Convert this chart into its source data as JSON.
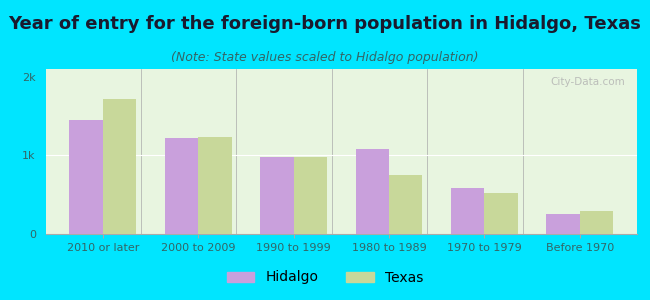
{
  "title": "Year of entry for the foreign-born population in Hidalgo, Texas",
  "subtitle": "(Note: State values scaled to Hidalgo population)",
  "categories": [
    "2010 or later",
    "2000 to 2009",
    "1990 to 1999",
    "1980 to 1989",
    "1970 to 1979",
    "Before 1970"
  ],
  "hidalgo_values": [
    1450,
    1220,
    980,
    1080,
    580,
    250
  ],
  "texas_values": [
    1720,
    1240,
    980,
    750,
    520,
    290
  ],
  "hidalgo_color": "#c9a0dc",
  "texas_color": "#c8d89a",
  "background_outer": "#00e5ff",
  "background_inner": "#e8f5e0",
  "bar_width": 0.35,
  "ylim": [
    0,
    2100
  ],
  "yticks": [
    0,
    1000,
    2000
  ],
  "ytick_labels": [
    "0",
    "1k",
    "2k"
  ],
  "legend_labels": [
    "Hidalgo",
    "Texas"
  ],
  "title_fontsize": 13,
  "subtitle_fontsize": 9,
  "tick_fontsize": 8,
  "legend_fontsize": 10,
  "watermark": "City-Data.com"
}
